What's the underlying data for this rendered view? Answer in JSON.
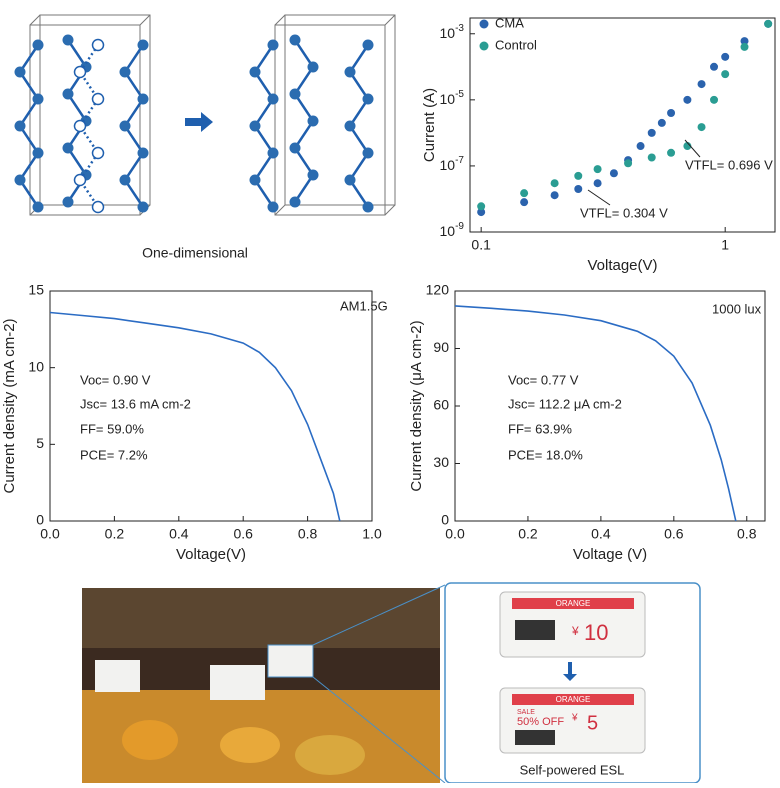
{
  "diagram": {
    "caption": "One-dimensional"
  },
  "chart_data": [
    {
      "type": "scatter",
      "xlabel": "Voltage(V)",
      "ylabel": "Current (A)",
      "xscale": "log",
      "yscale": "log",
      "legend": "upper left",
      "xlim": [
        0.09,
        1.6
      ],
      "ylim": [
        1e-09,
        0.003
      ],
      "xticks": [
        0.1,
        1
      ],
      "yticks": [
        {
          "value": 1e-09,
          "label": "10-9"
        },
        {
          "value": 1e-07,
          "label": "10-7"
        },
        {
          "value": 1e-05,
          "label": "10-5"
        },
        {
          "value": 0.001,
          "label": "10-3"
        }
      ],
      "series": [
        {
          "name": "CMA",
          "color": "#2b63ad",
          "x": [
            0.1,
            0.15,
            0.2,
            0.25,
            0.3,
            0.35,
            0.4,
            0.45,
            0.5,
            0.55,
            0.6,
            0.7,
            0.8,
            0.9,
            1.0,
            1.2,
            1.5
          ],
          "values": [
            4e-09,
            8e-09,
            1.3e-08,
            2e-08,
            3e-08,
            6e-08,
            1.5e-07,
            4e-07,
            1e-06,
            2e-06,
            4e-06,
            1e-05,
            3e-05,
            0.0001,
            0.0002,
            0.0006,
            0.002
          ]
        },
        {
          "name": "Control",
          "color": "#2a9d93",
          "x": [
            0.1,
            0.15,
            0.2,
            0.25,
            0.3,
            0.4,
            0.5,
            0.6,
            0.7,
            0.8,
            0.9,
            1.0,
            1.2,
            1.5
          ],
          "values": [
            6e-09,
            1.5e-08,
            3e-08,
            5e-08,
            8e-08,
            1.2e-07,
            1.8e-07,
            2.5e-07,
            4e-07,
            1.5e-06,
            1e-05,
            6e-05,
            0.0004,
            0.002
          ]
        }
      ],
      "annotations": [
        "VTFL= 0.304 V",
        "VTFL= 0.696 V"
      ]
    },
    {
      "type": "line",
      "xlabel": "Voltage(V)",
      "ylabel": "Current density (mA cm-2)",
      "xlim": [
        0,
        1
      ],
      "ylim": [
        0,
        15
      ],
      "xticks": [
        {
          "value": 0,
          "label": "0.0"
        },
        0.2,
        0.4,
        0.6,
        0.8,
        {
          "value": 1,
          "label": "1.0"
        }
      ],
      "yticks": [
        0,
        5,
        10,
        15
      ],
      "series": [
        {
          "color": "#2b6cc4",
          "x": [
            0,
            0.1,
            0.2,
            0.3,
            0.4,
            0.5,
            0.6,
            0.65,
            0.7,
            0.75,
            0.8,
            0.85,
            0.88,
            0.9
          ],
          "values": [
            13.6,
            13.4,
            13.2,
            12.9,
            12.6,
            12.2,
            11.6,
            11.0,
            10.0,
            8.5,
            6.3,
            3.5,
            1.8,
            0
          ]
        }
      ],
      "annotations": [
        "AM1.5G",
        "Voc= 0.90 V",
        "Jsc= 13.6 mA cm-2",
        "FF= 59.0%",
        "PCE= 7.2%"
      ]
    },
    {
      "type": "line",
      "xlabel": "Voltage (V)",
      "ylabel": "Current density (μA cm-2)",
      "xlim": [
        0,
        0.85
      ],
      "ylim": [
        0,
        120
      ],
      "xticks": [
        {
          "value": 0,
          "label": "0.0"
        },
        0.2,
        0.4,
        0.6,
        0.8
      ],
      "yticks": [
        0,
        30,
        60,
        90,
        120
      ],
      "series": [
        {
          "color": "#2b6cc4",
          "x": [
            0,
            0.1,
            0.2,
            0.3,
            0.4,
            0.5,
            0.55,
            0.6,
            0.65,
            0.7,
            0.73,
            0.75,
            0.77
          ],
          "values": [
            112.2,
            111,
            109.5,
            107.5,
            104.5,
            99,
            94,
            86,
            72,
            50,
            32,
            17,
            0
          ]
        }
      ],
      "annotations": [
        "1000 lux",
        "Voc= 0.77 V",
        "Jsc= 112.2 μA cm-2",
        "FF= 63.9%",
        "PCE= 18.0%"
      ]
    }
  ],
  "photo": {
    "caption": "Self-powered ESL",
    "tag_before": {
      "header": "ORANGE",
      "currency": "¥",
      "price": "10"
    },
    "tag_after": {
      "header": "ORANGE",
      "sale": "SALE",
      "offer": "50% OFF",
      "currency": "¥",
      "price": "5"
    }
  }
}
